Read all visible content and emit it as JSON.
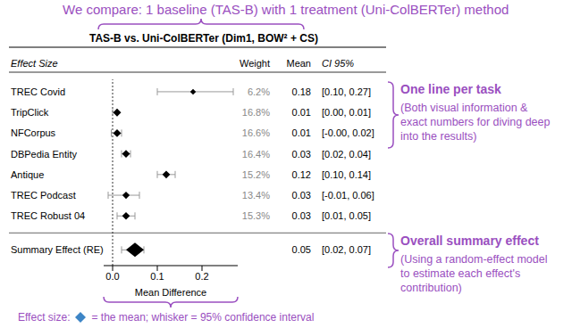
{
  "title": "We compare: 1 baseline (TAS-B) with 1 treatment (Uni-ColBERTer) method",
  "chart_data": {
    "type": "forest",
    "title": "TAS-B vs. Uni-ColBERTer (Dim1, BOW² + CS)",
    "column_headers": [
      "Effect Size",
      "Weight",
      "Mean",
      "CI 95%"
    ],
    "categories": [
      "TREC Covid",
      "TripClick",
      "NFCorpus",
      "DBPedia Entity",
      "Antique",
      "TREC Podcast",
      "TREC Robust 04"
    ],
    "values": [
      0.18,
      0.01,
      0.01,
      0.03,
      0.12,
      0.03,
      0.03
    ],
    "ci_low": [
      0.1,
      0.0,
      -0.003,
      0.02,
      0.1,
      -0.01,
      0.01
    ],
    "ci_high": [
      0.27,
      0.01,
      0.02,
      0.04,
      0.14,
      0.06,
      0.05
    ],
    "ci_labels": [
      "[0.10, 0.27]",
      "[0.00, 0.01]",
      "[-0.00, 0.02]",
      "[0.02, 0.04]",
      "[0.10, 0.14]",
      "[-0.01, 0.06]",
      "[0.01, 0.05]"
    ],
    "weights": [
      6.2,
      16.8,
      16.6,
      16.4,
      15.2,
      13.4,
      15.3
    ],
    "weight_labels": [
      "6.2%",
      "16.8%",
      "16.6%",
      "16.4%",
      "15.2%",
      "13.4%",
      "15.3%"
    ],
    "summary": {
      "label": "Summary Effect (RE)",
      "value": 0.05,
      "ci_low": 0.02,
      "ci_high": 0.07,
      "ci_label": "[0.02, 0.07]"
    },
    "x_label": "Mean Difference",
    "xlim": [
      -0.02,
      0.28
    ],
    "xticks": [
      {
        "value": 0,
        "label": "0.0"
      },
      0.1,
      0.2
    ],
    "color": "#000000"
  },
  "annotations": [
    {
      "heading": "One line per task",
      "lines": [
        "(Both visual information &",
        "exact numbers for diving deep",
        "into the results)"
      ]
    },
    {
      "heading": "Overall summary effect",
      "lines": [
        "(Using a random-effect model",
        "to estimate each effect's",
        "contribution)"
      ]
    }
  ],
  "footnote": {
    "prefix": "Effect size:",
    "icon_color": "#3d85c6",
    "text": "= the mean; whisker = 95% confidence interval"
  }
}
